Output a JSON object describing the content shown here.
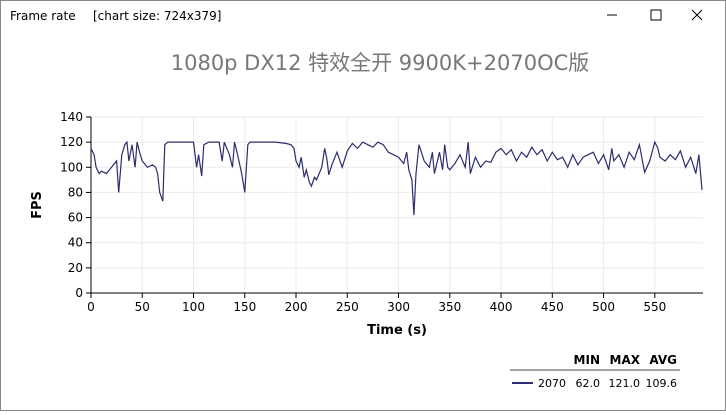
{
  "window": {
    "title": "Frame rate",
    "info": "[chart size: 724x379]"
  },
  "chart_data": {
    "type": "line",
    "title": "1080p DX12 特效全开 9900K+2070OC版",
    "x_label": "Time (s)",
    "y_label": "FPS",
    "x": [
      0,
      3,
      5,
      8,
      10,
      15,
      20,
      25,
      27,
      30,
      33,
      35,
      37,
      40,
      43,
      45,
      48,
      50,
      55,
      60,
      63,
      65,
      67,
      70,
      72,
      75,
      80,
      85,
      90,
      95,
      100,
      103,
      105,
      108,
      110,
      115,
      120,
      125,
      128,
      130,
      135,
      138,
      140,
      143,
      147,
      150,
      153,
      155,
      160,
      170,
      180,
      190,
      195,
      198,
      200,
      203,
      205,
      208,
      210,
      213,
      215,
      218,
      220,
      225,
      228,
      230,
      232,
      235,
      240,
      245,
      250,
      255,
      260,
      265,
      270,
      275,
      280,
      285,
      290,
      295,
      300,
      305,
      308,
      310,
      313,
      315,
      317,
      320,
      325,
      330,
      333,
      335,
      340,
      343,
      345,
      348,
      350,
      355,
      360,
      365,
      368,
      370,
      375,
      380,
      385,
      390,
      395,
      400,
      405,
      410,
      415,
      420,
      425,
      430,
      435,
      440,
      445,
      450,
      455,
      460,
      465,
      470,
      475,
      480,
      485,
      490,
      495,
      500,
      505,
      508,
      510,
      515,
      520,
      525,
      530,
      535,
      540,
      545,
      550,
      553,
      555,
      560,
      565,
      570,
      575,
      580,
      585,
      590,
      593,
      596
    ],
    "series": [
      {
        "name": "2070",
        "color": "#2b2d6e",
        "values": [
          115,
          110,
          100,
          95,
          97,
          95,
          100,
          105,
          80,
          110,
          118,
          120,
          105,
          118,
          100,
          120,
          110,
          105,
          100,
          102,
          100,
          95,
          80,
          73,
          118,
          120,
          120,
          120,
          120,
          120,
          120,
          100,
          110,
          93,
          118,
          120,
          120,
          120,
          105,
          120,
          110,
          100,
          120,
          110,
          95,
          80,
          118,
          120,
          120,
          120,
          120,
          119,
          118,
          115,
          105,
          100,
          108,
          92,
          98,
          88,
          85,
          92,
          90,
          100,
          115,
          107,
          94,
          102,
          112,
          100,
          113,
          119,
          115,
          120,
          118,
          116,
          120,
          118,
          112,
          110,
          108,
          103,
          112,
          98,
          90,
          62,
          95,
          118,
          105,
          100,
          112,
          95,
          112,
          98,
          118,
          100,
          98,
          103,
          110,
          100,
          120,
          95,
          108,
          100,
          105,
          104,
          112,
          115,
          110,
          114,
          105,
          112,
          108,
          116,
          110,
          114,
          105,
          112,
          106,
          108,
          100,
          110,
          102,
          108,
          110,
          112,
          103,
          110,
          98,
          115,
          105,
          110,
          100,
          112,
          106,
          118,
          96,
          105,
          120,
          115,
          108,
          105,
          110,
          106,
          113,
          100,
          108,
          95,
          110,
          82
        ],
        "stats": {
          "headers": [
            "MIN",
            "MAX",
            "AVG"
          ],
          "values": [
            62.0,
            121.0,
            109.6
          ],
          "value_labels": [
            "62.0",
            "121.0",
            "109.6"
          ]
        }
      }
    ],
    "xlim": [
      0,
      597
    ],
    "xticks": [
      0,
      50,
      100,
      150,
      200,
      250,
      300,
      350,
      400,
      450,
      500,
      550
    ],
    "ylim": [
      0,
      140
    ],
    "yticks": [
      0,
      20,
      40,
      60,
      80,
      100,
      120,
      140
    ],
    "grid": true
  }
}
